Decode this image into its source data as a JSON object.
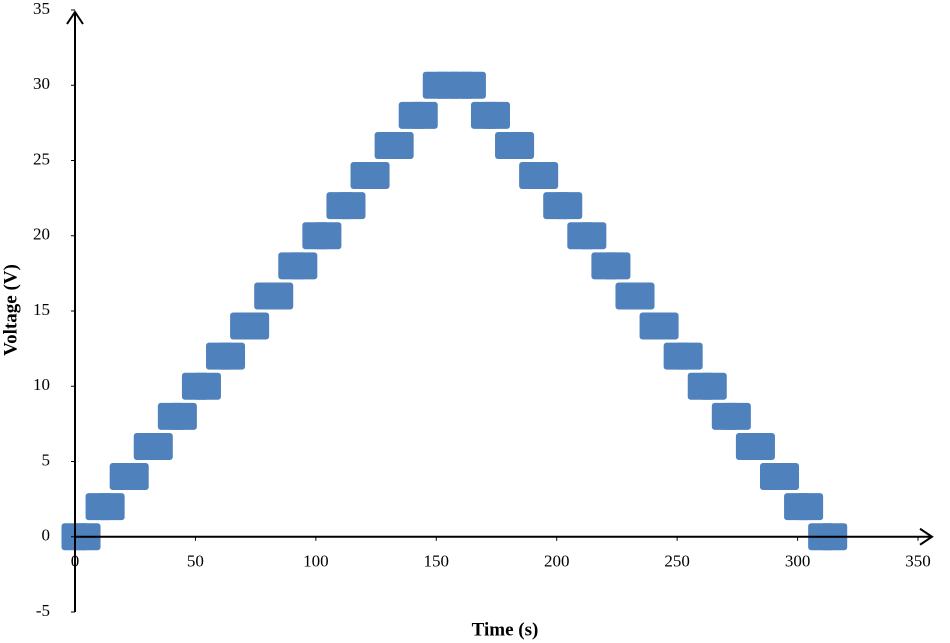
{
  "chart_data": {
    "type": "scatter",
    "x_label": "Time (s)",
    "y_label": "Voltage (V)",
    "marker": "square",
    "color": "#4f81bd",
    "x": [
      0,
      5,
      10,
      15,
      20,
      25,
      30,
      35,
      40,
      45,
      50,
      55,
      60,
      65,
      70,
      75,
      80,
      85,
      90,
      95,
      100,
      105,
      110,
      115,
      120,
      125,
      130,
      135,
      140,
      145,
      150,
      155,
      160,
      165,
      170,
      175,
      180,
      185,
      190,
      195,
      200,
      205,
      210,
      215,
      220,
      225,
      230,
      235,
      240,
      245,
      250,
      255,
      260,
      265,
      270,
      275,
      280,
      285,
      290,
      295,
      300,
      305,
      310,
      315
    ],
    "values": [
      0,
      0,
      2,
      2,
      4,
      4,
      6,
      6,
      8,
      8,
      10,
      10,
      12,
      12,
      14,
      14,
      16,
      16,
      18,
      18,
      20,
      20,
      22,
      22,
      24,
      24,
      26,
      26,
      28,
      28,
      30,
      30,
      30,
      30,
      28,
      28,
      26,
      26,
      24,
      24,
      22,
      22,
      20,
      20,
      18,
      18,
      16,
      16,
      14,
      14,
      12,
      12,
      10,
      10,
      8,
      8,
      6,
      6,
      4,
      4,
      2,
      2,
      0,
      0
    ],
    "xlim": [
      0,
      350
    ],
    "xticks": [
      0,
      50,
      100,
      150,
      200,
      250,
      300,
      350
    ],
    "ylim": [
      -5,
      35
    ],
    "yticks": [
      -5,
      0,
      5,
      10,
      15,
      20,
      25,
      30,
      35
    ],
    "grid": false
  }
}
